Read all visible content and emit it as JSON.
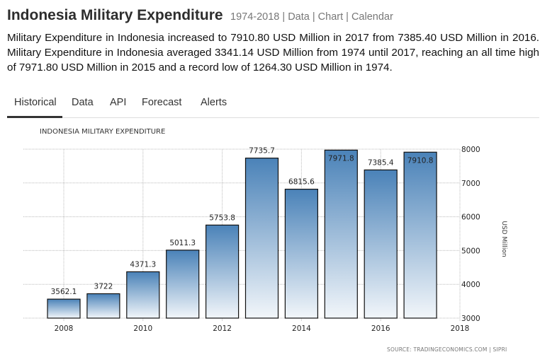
{
  "header": {
    "title": "Indonesia Military Expenditure",
    "range": "1974-2018",
    "links": [
      "Data",
      "Chart",
      "Calendar"
    ]
  },
  "description": "Military Expenditure in Indonesia increased to 7910.80 USD Million in 2017 from 7385.40 USD Million in 2016. Military Expenditure in Indonesia averaged 3341.14 USD Million from 1974 until 2017, reaching an all time high of 7971.80 USD Million in 2015 and a record low of 1264.30 USD Million in 1974.",
  "tabs": [
    {
      "label": "Historical",
      "active": true
    },
    {
      "label": "Data",
      "active": false
    },
    {
      "label": "API",
      "active": false
    },
    {
      "label": "Forecast",
      "active": false
    },
    {
      "label": "Alerts",
      "active": false
    }
  ],
  "colors": {
    "bar_top": "#4a82b8",
    "bar_bottom": "#f2f6fa",
    "bar_stroke": "#111111",
    "grid": "#bbbbbb"
  },
  "chart_data": {
    "type": "bar",
    "title": "INDONESIA MILITARY EXPENDITURE",
    "xlabel": "",
    "ylabel": "USD Million",
    "categories": [
      "2008",
      "2009",
      "2010",
      "2011",
      "2012",
      "2013",
      "2014",
      "2015",
      "2016",
      "2017"
    ],
    "x": [
      2008,
      2009,
      2010,
      2011,
      2012,
      2013,
      2014,
      2015,
      2016,
      2017
    ],
    "values": [
      3562.1,
      3722,
      4371.3,
      5011.3,
      5753.8,
      7735.7,
      6815.6,
      7971.8,
      7385.4,
      7910.8
    ],
    "data_labels": [
      "3562.1",
      "3722",
      "4371.3",
      "5011.3",
      "5753.8",
      "7735.7",
      "6815.6",
      "7971.8",
      "7385.4",
      "7910.8"
    ],
    "xlim": [
      2007.65,
      2018
    ],
    "ylim": [
      3000,
      8000
    ],
    "x_ticks": [
      "2008",
      "2010",
      "2012",
      "2014",
      "2016",
      "2018"
    ],
    "y_ticks": [
      "3000",
      "4000",
      "5000",
      "6000",
      "7000",
      "8000"
    ],
    "y_axis_side": "right",
    "grid": true,
    "source": "SOURCE: TRADINGECONOMICS.COM | SIPRI"
  }
}
